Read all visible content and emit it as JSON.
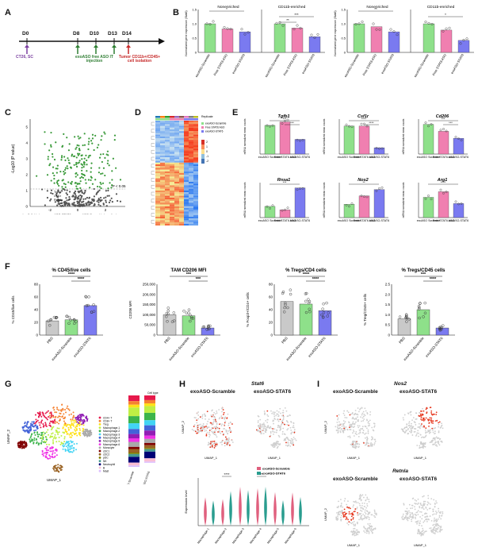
{
  "panels": {
    "A": "A",
    "B": "B",
    "C": "C",
    "D": "D",
    "E": "E",
    "F": "F",
    "G": "G",
    "H": "H",
    "I": "I"
  },
  "timeline": {
    "days": [
      "D0",
      "D8",
      "D10",
      "D13",
      "D14"
    ],
    "day0_label": "CT26, SC",
    "treatment_label": "exoASO free ASO IT injection",
    "endpoint_label": "Tumor CD11b+/CD45+ cell isolation",
    "colors": {
      "d0": "#7b3fa0",
      "treat": "#2e7d32",
      "end": "#c62828"
    }
  },
  "panel_b": {
    "left": {
      "ylabel": "Normalized gene expression (Stat6)",
      "groups": [
        "Nonenriched",
        "CD11b-enriched"
      ],
      "xlabels": [
        "exoASO-Scramble",
        "Free STAT6 ASO",
        "exoASO-STAT6",
        "exoASO-Scramble",
        "Free STAT6 ASO",
        "exoASO-STAT6"
      ],
      "values": [
        1.0,
        0.82,
        0.72,
        1.0,
        0.85,
        0.55
      ],
      "sig": [
        "*",
        "***",
        "**"
      ],
      "yticks": [
        "0",
        "0.5",
        "1.0",
        "1.5"
      ]
    },
    "right": {
      "ylabel": "Normalized gene expression (Stat6)",
      "groups": [
        "Nonenriched",
        "CD11b-enriched"
      ],
      "xlabels": [
        "exoASO-Scramble",
        "Free STAT6 ASO",
        "exoASO-STAT6",
        "exoASO-Scramble",
        "Free STAT6 ASO",
        "exoASO-STAT6"
      ],
      "values": [
        1.0,
        0.9,
        0.72,
        1.0,
        0.78,
        0.42
      ],
      "sig": [
        "**",
        "*"
      ],
      "yticks": [
        "0",
        "0.5",
        "1.0",
        "1.5"
      ]
    },
    "colors": [
      "#8ee08a",
      "#f07fb0",
      "#7a7af0"
    ]
  },
  "panel_c": {
    "ylabel": "-Log10 (P value)",
    "xlabel": "Log2 (fold change exoASO-STAT6 vs. exoASO-Scramble baseline)",
    "threshold_label": "*P < 0.05",
    "xticks": [
      "-2",
      "0",
      "2"
    ],
    "yticks": [
      "0",
      "1",
      "2",
      "3",
      "4",
      "5"
    ],
    "annotations": [
      "Tgfb1",
      "Csf1r",
      "Retnla"
    ]
  },
  "panel_d": {
    "legend_title": "Replicate",
    "legend_items": [
      "exoASO-Scramble",
      "Free STAT6 ASO",
      "exoASO-STAT6"
    ],
    "scale": [
      "2",
      "1",
      "0",
      "-1",
      "-2"
    ]
  },
  "panel_e": {
    "ylabel": "mRNA normalized mean counts",
    "xlabels": [
      "exoASO Scramble",
      "Free STAT6 ASO",
      "exoASO-STAT6"
    ],
    "genes": [
      {
        "name": "Tgfb1",
        "values": [
          0.82,
          0.92,
          0.42
        ],
        "sig": [
          "***",
          "***"
        ]
      },
      {
        "name": "Csf1r",
        "values": [
          0.8,
          0.8,
          0.18
        ],
        "sig": [
          "****",
          "****"
        ]
      },
      {
        "name": "Cd206",
        "values": [
          0.85,
          0.65,
          0.45
        ],
        "sig": [
          "***",
          "***"
        ]
      },
      {
        "name": "Rnsa1",
        "values": [
          0.32,
          0.22,
          0.85
        ],
        "sig": [
          "***"
        ]
      },
      {
        "name": "Nos2",
        "values": [
          0.38,
          0.62,
          0.8
        ],
        "sig": [
          "**"
        ]
      },
      {
        "name": "Arg1",
        "values": [
          0.58,
          0.74,
          0.4
        ],
        "sig": [
          "****"
        ]
      }
    ],
    "colors": [
      "#8ee08a",
      "#f07fb0",
      "#7a7af0"
    ]
  },
  "panel_f": {
    "charts": [
      {
        "title": "% CD45/live cells",
        "ylabel": "% CD45/live cells",
        "yticks": [
          "0",
          "20",
          "40",
          "60",
          "80"
        ],
        "xlabels": [
          "PBS",
          "exoASO-Scramble",
          "exoASO-STAT6"
        ],
        "values": [
          0.28,
          0.3,
          0.58
        ],
        "sig": [
          "****",
          "****"
        ]
      },
      {
        "title": "TAM CD206 MFI",
        "ylabel": "CD206 MFI",
        "yticks": [
          "0",
          "50,000",
          "100,000",
          "150,000",
          "200,000",
          "250,000"
        ],
        "xlabels": [
          "PBS",
          "exoASO-Scramble",
          "exoASO-STAT6"
        ],
        "values": [
          0.4,
          0.38,
          0.14
        ],
        "sig": [
          "***",
          "***"
        ]
      },
      {
        "title": "% Tregs/CD4 cells",
        "ylabel": "% Foxp3+/CD4+ cells",
        "yticks": [
          "0",
          "20",
          "40",
          "60",
          "80"
        ],
        "xlabels": [
          "PBS",
          "exoASO-Scramble",
          "exoASO-STAT6"
        ],
        "values": [
          0.66,
          0.61,
          0.48
        ],
        "sig": [
          "****",
          "****"
        ]
      },
      {
        "title": "% Tregs/CD45 cells",
        "ylabel": "% Treg/CD45+ cells",
        "yticks": [
          "0",
          "0.5",
          "1.0",
          "1.5",
          "2.0",
          "2.5"
        ],
        "xlabels": [
          "PBS",
          "exoASO-Scramble",
          "exoASO-STAT6"
        ],
        "values": [
          0.32,
          0.5,
          0.14
        ],
        "sig": [
          "***",
          "****"
        ]
      }
    ],
    "colors": [
      "#c9c9c9",
      "#8ee08a",
      "#7a7af0"
    ]
  },
  "panel_g": {
    "xlabel": "UMAP_1",
    "ylabel": "UMAP_2",
    "legend_title": "Cell type",
    "legend_items": [
      "CD4+ T",
      "CD8+ T",
      "Treg",
      "Macrophage-1",
      "Macrophage-2",
      "Macrophage-3",
      "Macrophage-4",
      "Macrophage-5",
      "Macrophage-6",
      "Monocyte",
      "cDC1",
      "cDC2",
      "pDC",
      "NK",
      "Neutrophil",
      "B",
      "Mast"
    ],
    "bar_labels": [
      "exoASO-Scramble",
      "exoASO-STAT6"
    ],
    "palette": [
      "#e6194b",
      "#f58231",
      "#ffe119",
      "#bfef45",
      "#3cb44b",
      "#42d4f4",
      "#4363d8",
      "#911eb4",
      "#f032e6",
      "#a9a9a9",
      "#800000",
      "#9a6324",
      "#808000",
      "#469990",
      "#000075",
      "#fabed4",
      "#dcbeff"
    ]
  },
  "panel_h": {
    "gene": "Stat6",
    "left_title": "exoASO-Scramble",
    "right_title": "exoASO-STAT6",
    "xlabel": "UMAP_1",
    "ylabel": "UMAP_2",
    "violin_ylabel": "Expression level",
    "violin_legend": [
      "exoASO-Scramble",
      "exoASO-STAT6"
    ],
    "violin_groups": [
      "Macrophage-1",
      "Macrophage-2",
      "Macrophage-3",
      "Macrophage-4",
      "Macrophage-5",
      "Macrophage-6"
    ],
    "violin_sig": [
      "****",
      "**"
    ],
    "violin_colors": [
      "#e0607e",
      "#2a9d8f"
    ]
  },
  "panel_i": {
    "gene1": "Nos2",
    "gene2": "Retnla",
    "left_title": "exoASO-Scramble",
    "right_title": "exoASO-STAT6",
    "xlabel": "UMAP_1",
    "ylabel": "UMAP_2"
  }
}
